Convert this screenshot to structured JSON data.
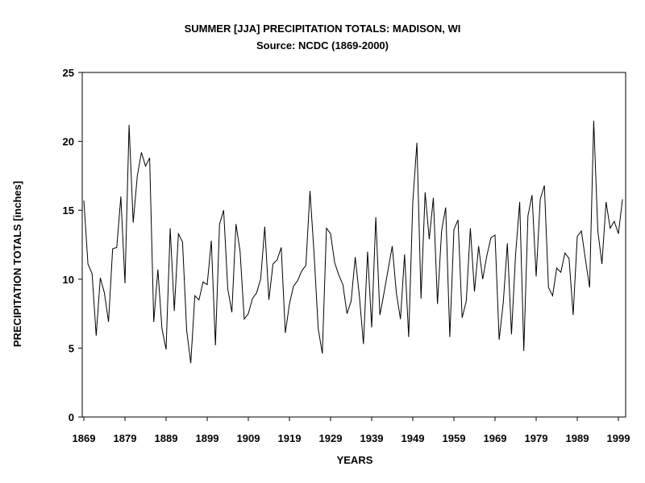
{
  "chart_data": {
    "type": "line",
    "title": "SUMMER [JJA] PRECIPITATION TOTALS: MADISON, WI",
    "subtitle": "Source: NCDC (1869-2000)",
    "xlabel": "YEARS",
    "ylabel": "PRECIPITATION TOTALS [inches]",
    "ylim": [
      0,
      25
    ],
    "yticks": [
      0,
      5,
      10,
      15,
      20,
      25
    ],
    "xticks": [
      1869,
      1879,
      1889,
      1899,
      1909,
      1919,
      1929,
      1939,
      1949,
      1959,
      1969,
      1979,
      1989,
      1999
    ],
    "grid": false,
    "line_color": "#000000",
    "x_start": 1869,
    "x_end": 2000,
    "values": [
      15.7,
      11.1,
      10.4,
      5.9,
      10.1,
      9.0,
      6.9,
      12.2,
      12.3,
      16.0,
      9.7,
      21.2,
      14.1,
      17.5,
      19.2,
      18.2,
      18.8,
      6.9,
      10.7,
      6.4,
      4.9,
      13.7,
      7.7,
      13.3,
      12.7,
      6.3,
      3.9,
      8.8,
      8.5,
      9.8,
      9.6,
      12.8,
      5.2,
      14.0,
      15.0,
      9.3,
      7.6,
      14.0,
      12.0,
      7.1,
      7.5,
      8.6,
      9.0,
      10.0,
      13.8,
      8.5,
      11.1,
      11.4,
      12.3,
      6.1,
      8.2,
      9.5,
      9.9,
      10.6,
      11.0,
      16.4,
      11.8,
      6.4,
      4.6,
      13.7,
      13.3,
      11.2,
      10.3,
      9.6,
      7.5,
      8.4,
      11.6,
      8.8,
      5.3,
      12.0,
      6.5,
      14.5,
      7.4,
      9.0,
      10.7,
      12.4,
      9.0,
      7.1,
      11.8,
      5.8,
      15.6,
      19.9,
      8.6,
      16.3,
      12.9,
      15.9,
      8.2,
      13.5,
      15.2,
      5.8,
      13.6,
      14.3,
      7.2,
      8.4,
      13.7,
      9.1,
      12.4,
      10.0,
      11.7,
      13.0,
      13.2,
      5.6,
      8.3,
      12.6,
      6.0,
      11.8,
      15.6,
      4.8,
      14.6,
      16.1,
      10.2,
      15.8,
      16.8,
      9.4,
      8.8,
      10.8,
      10.5,
      11.9,
      11.5,
      7.4,
      13.1,
      13.5,
      11.4,
      9.4,
      21.5,
      13.5,
      11.1,
      15.6,
      13.7,
      14.2,
      13.3,
      15.8
    ]
  }
}
